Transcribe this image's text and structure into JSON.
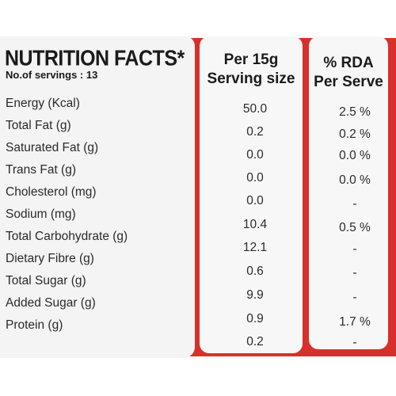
{
  "title": "NUTRITION FACTS*",
  "servings": "No.of servings : 13",
  "columns": {
    "per_serving": [
      "Per 15g",
      "Serving size"
    ],
    "rda": [
      "% RDA",
      "Per Serve"
    ]
  },
  "nutrients": [
    {
      "name": "Energy (Kcal)",
      "per_serving": "50.0",
      "rda": "2.5 %"
    },
    {
      "name": "Total Fat (g)",
      "per_serving": "0.2",
      "rda": "0.2 %"
    },
    {
      "name": "Saturated Fat (g)",
      "per_serving": "0.0",
      "rda": "0.0 %"
    },
    {
      "name": "Trans Fat (g)",
      "per_serving": "0.0",
      "rda": "0.0 %"
    },
    {
      "name": "Cholesterol (mg)",
      "per_serving": "0.0",
      "rda": "-"
    },
    {
      "name": "Sodium (mg)",
      "per_serving": "10.4",
      "rda": "0.5 %"
    },
    {
      "name": "Total Carbohydrate (g)",
      "per_serving": "12.1",
      "rda": "-"
    },
    {
      "name": "Dietary Fibre (g)",
      "per_serving": "0.6",
      "rda": "-"
    },
    {
      "name": "Total Sugar (g)",
      "per_serving": "9.9",
      "rda": "-"
    },
    {
      "name": "Added Sugar (g)",
      "per_serving": "0.9",
      "rda": "1.7 %"
    },
    {
      "name": "Protein (g)",
      "per_serving": "0.2",
      "rda": "-"
    }
  ],
  "colors": {
    "accent": "#d7302b",
    "panel": "#f6f6f6",
    "text": "#1a1a1a"
  }
}
